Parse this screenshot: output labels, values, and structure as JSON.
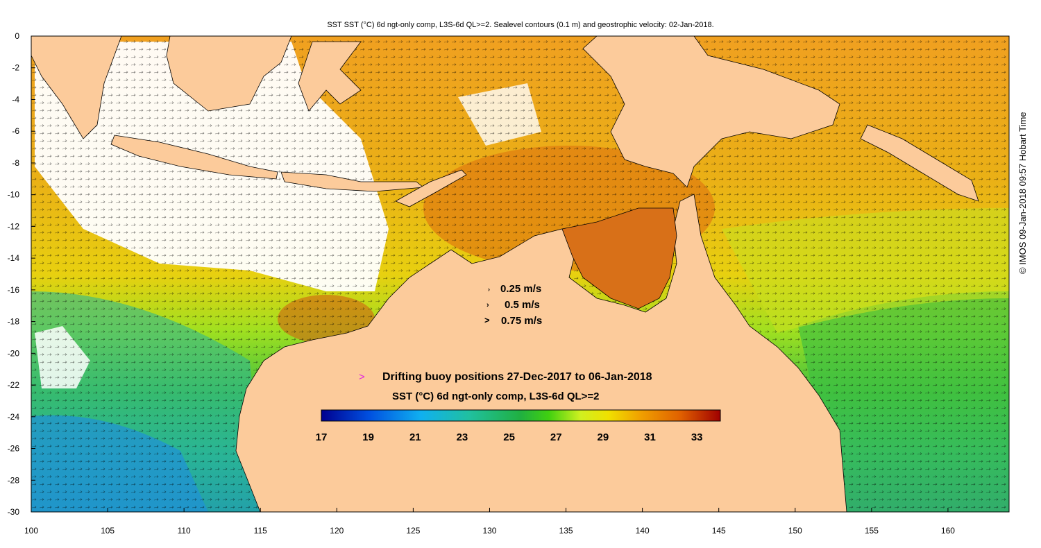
{
  "title": "SST SST (°C) 6d ngt-only comp, L3S-6d QL>=2. Sealevel contours (0.1 m) and geostrophic velocity: 02-Jan-2018.",
  "credit": "© IMOS 09-Jan-2018 09:57 Hobart Time",
  "axes": {
    "lon_ticks": [
      "100",
      "105",
      "110",
      "115",
      "120",
      "125",
      "130",
      "135",
      "140",
      "145",
      "150",
      "155",
      "160"
    ],
    "lat_ticks": [
      "0",
      "-2",
      "-4",
      "-6",
      "-8",
      "-10",
      "-12",
      "-14",
      "-16",
      "-18",
      "-20",
      "-22",
      "-24",
      "-26",
      "-28",
      "-30"
    ],
    "lon_range": [
      100,
      164
    ],
    "lat_range": [
      -30,
      0
    ]
  },
  "velocity_legend": [
    "0.25 m/s",
    "0.5 m/s",
    "0.75 m/s"
  ],
  "buoy_legend": {
    "marker": ">",
    "text": "Drifting buoy positions 27-Dec-2017 to 06-Jan-2018",
    "marker_color": "#e020e0"
  },
  "colorbar": {
    "title": "SST (°C) 6d ngt-only comp, L3S-6d QL>=2",
    "range": [
      17,
      34
    ],
    "labels": [
      "17",
      "19",
      "21",
      "23",
      "25",
      "27",
      "29",
      "31",
      "33"
    ]
  },
  "colors": {
    "land": "#fccb9b",
    "cloud": "#ffffff",
    "coast": "#000000"
  }
}
